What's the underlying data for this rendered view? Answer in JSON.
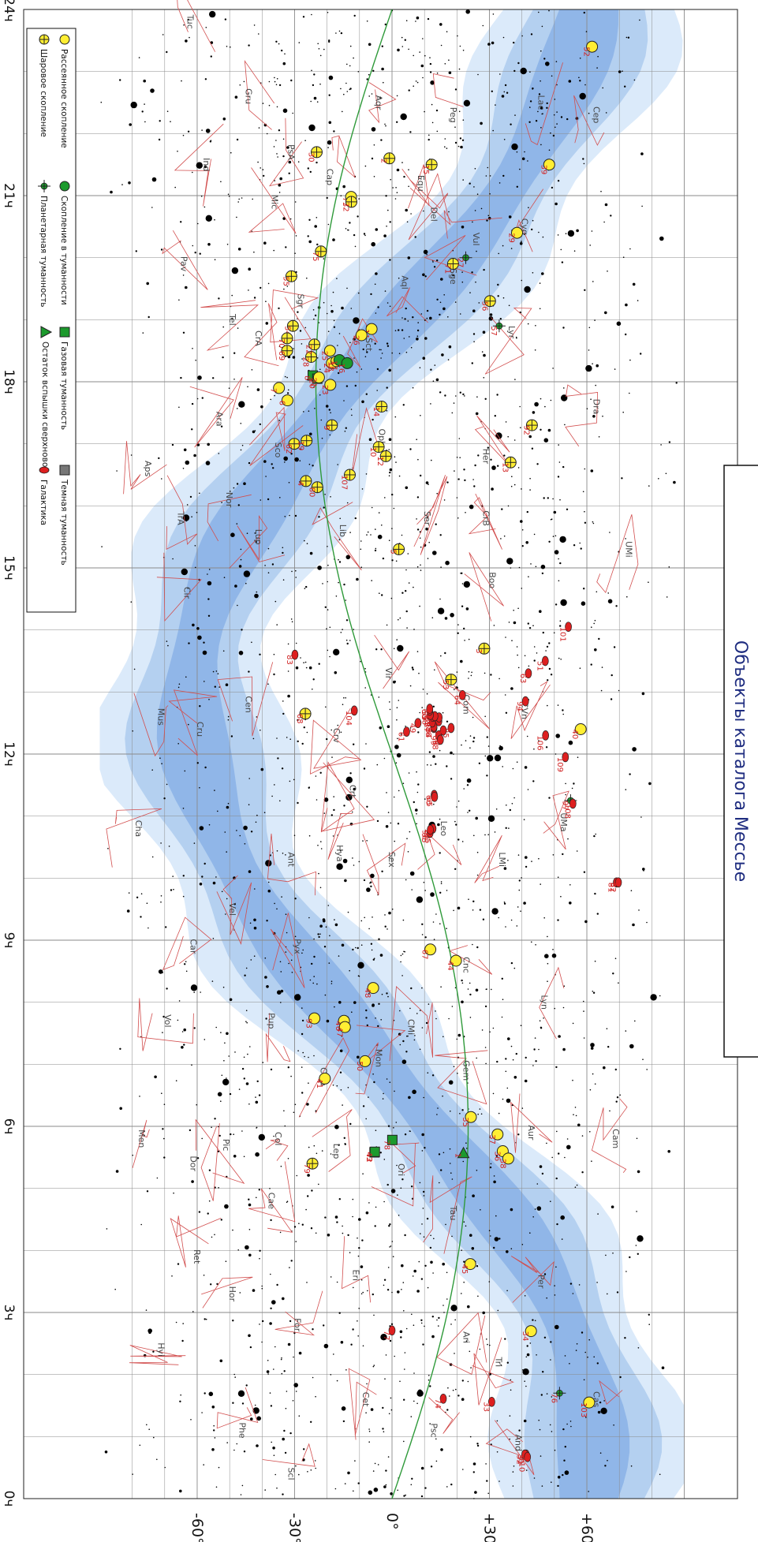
{
  "title": "Объекты каталога Мессье",
  "ra_labels": [
    "24ч",
    "21ч",
    "18ч",
    "15ч",
    "12ч",
    "9ч",
    "6ч",
    "3ч",
    "0ч"
  ],
  "dec_labels": [
    "-60°",
    "-30°",
    "0°",
    "+30°",
    "+60°"
  ],
  "legend": [
    {
      "key": "open",
      "label": "Рассеянное скопление"
    },
    {
      "key": "globular",
      "label": "Шаровое скопление"
    },
    {
      "key": "cluster_neb",
      "label": "Скопление в туманности"
    },
    {
      "key": "planetary",
      "label": "Планетарная туманность"
    },
    {
      "key": "gas",
      "label": "Газовая туманность"
    },
    {
      "key": "snr",
      "label": "Остаток вспышки сверхновой"
    },
    {
      "key": "dark",
      "label": "Темная туманность"
    },
    {
      "key": "galaxy",
      "label": "Галактика"
    }
  ],
  "constellations": [
    {
      "name": "Cep",
      "ra": 22.3,
      "dec": 62
    },
    {
      "name": "Lac",
      "ra": 22.5,
      "dec": 45
    },
    {
      "name": "Peg",
      "ra": 22.3,
      "dec": 18
    },
    {
      "name": "Aqr",
      "ra": 22.5,
      "dec": -5
    },
    {
      "name": "Gru",
      "ra": 22.6,
      "dec": -45
    },
    {
      "name": "Tuc",
      "ra": 23.8,
      "dec": -63
    },
    {
      "name": "PsA",
      "ra": 21.7,
      "dec": -32
    },
    {
      "name": "Cap",
      "ra": 21.3,
      "dec": -20
    },
    {
      "name": "Equ",
      "ra": 21.2,
      "dec": 8
    },
    {
      "name": "Del",
      "ra": 20.7,
      "dec": 12
    },
    {
      "name": "Vul",
      "ra": 20.3,
      "dec": 25
    },
    {
      "name": "Cyg",
      "ra": 20.5,
      "dec": 40
    },
    {
      "name": "Ind",
      "ra": 21.5,
      "dec": -58
    },
    {
      "name": "Mic",
      "ra": 20.9,
      "dec": -37
    },
    {
      "name": "Pav",
      "ra": 19.9,
      "dec": -65
    },
    {
      "name": "Tel",
      "ra": 19.0,
      "dec": -50
    },
    {
      "name": "Sgr",
      "ra": 19.3,
      "dec": -29
    },
    {
      "name": "CrA",
      "ra": 18.7,
      "dec": -42
    },
    {
      "name": "Aql",
      "ra": 19.6,
      "dec": 3
    },
    {
      "name": "Sge",
      "ra": 19.7,
      "dec": 18
    },
    {
      "name": "Lyr",
      "ra": 18.8,
      "dec": 36
    },
    {
      "name": "Sct",
      "ra": 18.6,
      "dec": -8
    },
    {
      "name": "Dra",
      "ra": 17.6,
      "dec": 62
    },
    {
      "name": "Her",
      "ra": 16.8,
      "dec": 28
    },
    {
      "name": "Oph",
      "ra": 17.1,
      "dec": -4
    },
    {
      "name": "Ara",
      "ra": 17.4,
      "dec": -54
    },
    {
      "name": "Sco",
      "ra": 16.9,
      "dec": -36
    },
    {
      "name": "Aps",
      "ra": 16.6,
      "dec": -76
    },
    {
      "name": "Nor",
      "ra": 16.1,
      "dec": -51
    },
    {
      "name": "TrA",
      "ra": 15.8,
      "dec": -66
    },
    {
      "name": "Lup",
      "ra": 15.5,
      "dec": -42
    },
    {
      "name": "Lib",
      "ra": 15.6,
      "dec": -16
    },
    {
      "name": "Ser",
      "ra": 15.8,
      "dec": 10
    },
    {
      "name": "CrB",
      "ra": 15.8,
      "dec": 28
    },
    {
      "name": "Boo",
      "ra": 14.8,
      "dec": 30
    },
    {
      "name": "UMi",
      "ra": 15.3,
      "dec": 72
    },
    {
      "name": "Cir",
      "ra": 14.6,
      "dec": -64
    },
    {
      "name": "Mus",
      "ra": 12.6,
      "dec": -72
    },
    {
      "name": "Cen",
      "ra": 12.8,
      "dec": -45
    },
    {
      "name": "Cru",
      "ra": 12.4,
      "dec": -60
    },
    {
      "name": "Vir",
      "ra": 13.3,
      "dec": -2
    },
    {
      "name": "Com",
      "ra": 12.8,
      "dec": 22
    },
    {
      "name": "CVn",
      "ra": 12.7,
      "dec": 40
    },
    {
      "name": "Crv",
      "ra": 12.3,
      "dec": -18
    },
    {
      "name": "Crt",
      "ra": 11.4,
      "dec": -13
    },
    {
      "name": "Hya",
      "ra": 10.4,
      "dec": -17
    },
    {
      "name": "Sex",
      "ra": 10.3,
      "dec": -1
    },
    {
      "name": "Leo",
      "ra": 10.8,
      "dec": 15
    },
    {
      "name": "LMi",
      "ra": 10.3,
      "dec": 33
    },
    {
      "name": "UMa",
      "ra": 10.9,
      "dec": 52
    },
    {
      "name": "Cha",
      "ra": 10.8,
      "dec": -79
    },
    {
      "name": "Ant",
      "ra": 10.3,
      "dec": -32
    },
    {
      "name": "Vel",
      "ra": 9.5,
      "dec": -50
    },
    {
      "name": "Car",
      "ra": 8.9,
      "dec": -62
    },
    {
      "name": "Pyx",
      "ra": 8.9,
      "dec": -30
    },
    {
      "name": "Cnc",
      "ra": 8.6,
      "dec": 22
    },
    {
      "name": "Lyn",
      "ra": 8.0,
      "dec": 46
    },
    {
      "name": "CMi",
      "ra": 7.6,
      "dec": 5
    },
    {
      "name": "Mon",
      "ra": 7.1,
      "dec": -5
    },
    {
      "name": "Pup",
      "ra": 7.7,
      "dec": -38
    },
    {
      "name": "Vol",
      "ra": 7.7,
      "dec": -70
    },
    {
      "name": "CMa",
      "ra": 6.8,
      "dec": -22
    },
    {
      "name": "Gem",
      "ra": 6.9,
      "dec": 22
    },
    {
      "name": "Aur",
      "ra": 5.9,
      "dec": 42
    },
    {
      "name": "Cam",
      "ra": 5.8,
      "dec": 68
    },
    {
      "name": "Lep",
      "ra": 5.6,
      "dec": -18
    },
    {
      "name": "Ori",
      "ra": 5.3,
      "dec": 2
    },
    {
      "name": "Pic",
      "ra": 5.7,
      "dec": -52
    },
    {
      "name": "Dor",
      "ra": 5.4,
      "dec": -62
    },
    {
      "name": "Men",
      "ra": 5.8,
      "dec": -78
    },
    {
      "name": "Col",
      "ra": 5.8,
      "dec": -36
    },
    {
      "name": "Cae",
      "ra": 4.8,
      "dec": -38
    },
    {
      "name": "Tau",
      "ra": 4.6,
      "dec": 18
    },
    {
      "name": "Eri",
      "ra": 3.6,
      "dec": -12
    },
    {
      "name": "Per",
      "ra": 3.5,
      "dec": 45
    },
    {
      "name": "Ret",
      "ra": 3.9,
      "dec": -61
    },
    {
      "name": "Hor",
      "ra": 3.3,
      "dec": -50
    },
    {
      "name": "For",
      "ra": 2.8,
      "dec": -30
    },
    {
      "name": "Hyi",
      "ra": 2.4,
      "dec": -72
    },
    {
      "name": "Ari",
      "ra": 2.6,
      "dec": 22
    },
    {
      "name": "Tri",
      "ra": 2.2,
      "dec": 32
    },
    {
      "name": "Cet",
      "ra": 1.6,
      "dec": -9
    },
    {
      "name": "Psc",
      "ra": 1.1,
      "dec": 12
    },
    {
      "name": "And",
      "ra": 0.9,
      "dec": 38
    },
    {
      "name": "Cas",
      "ra": 1.6,
      "dec": 62
    },
    {
      "name": "Phe",
      "ra": 1.1,
      "dec": -47
    },
    {
      "name": "Scl",
      "ra": 0.4,
      "dec": -32
    }
  ],
  "messier": [
    {
      "n": "52",
      "type": "open",
      "ra": 23.4,
      "dec": 61.6
    },
    {
      "n": "39",
      "type": "open",
      "ra": 21.5,
      "dec": 48.4
    },
    {
      "n": "29",
      "type": "open",
      "ra": 20.4,
      "dec": 38.5
    },
    {
      "n": "15",
      "type": "globular",
      "ra": 21.5,
      "dec": 12.2
    },
    {
      "n": "2",
      "type": "globular",
      "ra": 21.6,
      "dec": -0.8
    },
    {
      "n": "30",
      "type": "globular",
      "ra": 21.7,
      "dec": -23.2
    },
    {
      "n": "73",
      "type": "open",
      "ra": 20.98,
      "dec": -12.6
    },
    {
      "n": "72",
      "type": "globular",
      "ra": 20.9,
      "dec": -12.5
    },
    {
      "n": "75",
      "type": "globular",
      "ra": 20.1,
      "dec": -21.9
    },
    {
      "n": "71",
      "type": "globular",
      "ra": 19.9,
      "dec": 18.8
    },
    {
      "n": "27",
      "type": "planetary",
      "ra": 20.0,
      "dec": 22.7
    },
    {
      "n": "56",
      "type": "globular",
      "ra": 19.3,
      "dec": 30.2
    },
    {
      "n": "57",
      "type": "planetary",
      "ra": 18.9,
      "dec": 33.0
    },
    {
      "n": "55",
      "type": "globular",
      "ra": 19.7,
      "dec": -31.0
    },
    {
      "n": "54",
      "type": "globular",
      "ra": 18.9,
      "dec": -30.5
    },
    {
      "n": "70",
      "type": "globular",
      "ra": 18.7,
      "dec": -32.3
    },
    {
      "n": "69",
      "type": "globular",
      "ra": 18.5,
      "dec": -32.3
    },
    {
      "n": "28",
      "type": "globular",
      "ra": 18.4,
      "dec": -24.9
    },
    {
      "n": "22",
      "type": "globular",
      "ra": 18.6,
      "dec": -23.9
    },
    {
      "n": "25",
      "type": "open",
      "ra": 18.5,
      "dec": -19.1
    },
    {
      "n": "11",
      "type": "open",
      "ra": 18.85,
      "dec": -6.3
    },
    {
      "n": "26",
      "type": "open",
      "ra": 18.75,
      "dec": -9.4
    },
    {
      "n": "24",
      "type": "open",
      "ra": 18.3,
      "dec": -18.5
    },
    {
      "n": "18",
      "type": "open",
      "ra": 18.33,
      "dec": -17.1
    },
    {
      "n": "17",
      "type": "cluster_neb",
      "ra": 18.35,
      "dec": -16.2
    },
    {
      "n": "16",
      "type": "cluster_neb",
      "ra": 18.3,
      "dec": -13.8
    },
    {
      "n": "8",
      "type": "gas",
      "ra": 18.1,
      "dec": -24.4
    },
    {
      "n": "20",
      "type": "gas",
      "ra": 18.05,
      "dec": -23.0
    },
    {
      "n": "21",
      "type": "open",
      "ra": 18.07,
      "dec": -22.5
    },
    {
      "n": "23",
      "type": "open",
      "ra": 17.95,
      "dec": -19.0
    },
    {
      "n": "9",
      "type": "globular",
      "ra": 17.3,
      "dec": -18.5
    },
    {
      "n": "7",
      "type": "open",
      "ra": 17.9,
      "dec": -34.8
    },
    {
      "n": "6",
      "type": "open",
      "ra": 17.7,
      "dec": -32.2
    },
    {
      "n": "62",
      "type": "globular",
      "ra": 17.0,
      "dec": -30.1
    },
    {
      "n": "19",
      "type": "globular",
      "ra": 17.05,
      "dec": -26.3
    },
    {
      "n": "4",
      "type": "globular",
      "ra": 16.4,
      "dec": -26.5
    },
    {
      "n": "80",
      "type": "globular",
      "ra": 16.3,
      "dec": -23.0
    },
    {
      "n": "14",
      "type": "globular",
      "ra": 17.6,
      "dec": -3.2
    },
    {
      "n": "10",
      "type": "globular",
      "ra": 16.95,
      "dec": -4.1
    },
    {
      "n": "12",
      "type": "globular",
      "ra": 16.8,
      "dec": -1.9
    },
    {
      "n": "107",
      "type": "globular",
      "ra": 16.5,
      "dec": -13.0
    },
    {
      "n": "5",
      "type": "globular",
      "ra": 15.3,
      "dec": 2.1
    },
    {
      "n": "13",
      "type": "globular",
      "ra": 16.7,
      "dec": 36.5
    },
    {
      "n": "92",
      "type": "globular",
      "ra": 17.3,
      "dec": 43.1
    },
    {
      "n": "3",
      "type": "globular",
      "ra": 13.7,
      "dec": 28.4
    },
    {
      "n": "53",
      "type": "globular",
      "ra": 13.2,
      "dec": 18.2
    },
    {
      "n": "68",
      "type": "globular",
      "ra": 12.65,
      "dec": -26.7
    },
    {
      "n": "83",
      "type": "galaxy",
      "ra": 13.6,
      "dec": -29.9
    },
    {
      "n": "104",
      "type": "galaxy",
      "ra": 12.7,
      "dec": -11.6
    },
    {
      "n": "101",
      "type": "galaxy",
      "ra": 14.05,
      "dec": 54.3
    },
    {
      "n": "51",
      "type": "galaxy",
      "ra": 13.5,
      "dec": 47.2
    },
    {
      "n": "63",
      "type": "galaxy",
      "ra": 13.3,
      "dec": 42.0
    },
    {
      "n": "94",
      "type": "galaxy",
      "ra": 12.85,
      "dec": 41.1
    },
    {
      "n": "106",
      "type": "galaxy",
      "ra": 12.3,
      "dec": 47.3
    },
    {
      "n": "109",
      "type": "galaxy",
      "ra": 11.95,
      "dec": 53.4
    },
    {
      "n": "40",
      "type": "open",
      "ra": 12.4,
      "dec": 58.1
    },
    {
      "n": "97",
      "type": "planetary",
      "ra": 11.25,
      "dec": 55.0
    },
    {
      "n": "108",
      "type": "galaxy",
      "ra": 11.2,
      "dec": 55.7
    },
    {
      "n": "64",
      "type": "galaxy",
      "ra": 12.95,
      "dec": 21.7
    },
    {
      "n": "85",
      "type": "galaxy",
      "ra": 12.42,
      "dec": 18.2
    },
    {
      "n": "88",
      "type": "galaxy",
      "ra": 12.53,
      "dec": 14.4
    },
    {
      "n": "91",
      "type": "galaxy",
      "ra": 12.59,
      "dec": 14.5
    },
    {
      "n": "99",
      "type": "galaxy",
      "ra": 12.3,
      "dec": 14.4
    },
    {
      "n": "100",
      "type": "galaxy",
      "ra": 12.38,
      "dec": 15.8
    },
    {
      "n": "98",
      "type": "galaxy",
      "ra": 12.23,
      "dec": 14.9
    },
    {
      "n": "84",
      "type": "galaxy",
      "ra": 12.42,
      "dec": 12.9
    },
    {
      "n": "86",
      "type": "galaxy",
      "ra": 12.44,
      "dec": 12.9
    },
    {
      "n": "87",
      "type": "galaxy",
      "ra": 12.51,
      "dec": 12.4
    },
    {
      "n": "89",
      "type": "galaxy",
      "ra": 12.6,
      "dec": 12.6
    },
    {
      "n": "90",
      "type": "galaxy",
      "ra": 12.61,
      "dec": 13.2
    },
    {
      "n": "58",
      "type": "galaxy",
      "ra": 12.63,
      "dec": 11.8
    },
    {
      "n": "59",
      "type": "galaxy",
      "ra": 12.7,
      "dec": 11.6
    },
    {
      "n": "60",
      "type": "galaxy",
      "ra": 12.73,
      "dec": 11.6
    },
    {
      "n": "49",
      "type": "galaxy",
      "ra": 12.5,
      "dec": 8.0
    },
    {
      "n": "61",
      "type": "galaxy",
      "ra": 12.36,
      "dec": 4.5
    },
    {
      "n": "66",
      "type": "galaxy",
      "ra": 11.34,
      "dec": 13.0
    },
    {
      "n": "65",
      "type": "galaxy",
      "ra": 11.31,
      "dec": 13.1
    },
    {
      "n": "105",
      "type": "galaxy",
      "ra": 10.8,
      "dec": 12.6
    },
    {
      "n": "95",
      "type": "galaxy",
      "ra": 10.73,
      "dec": 11.7
    },
    {
      "n": "96",
      "type": "galaxy",
      "ra": 10.78,
      "dec": 11.8
    },
    {
      "n": "81",
      "type": "galaxy",
      "ra": 9.93,
      "dec": 69.1
    },
    {
      "n": "82",
      "type": "galaxy",
      "ra": 9.93,
      "dec": 69.7
    },
    {
      "n": "67",
      "type": "open",
      "ra": 8.85,
      "dec": 11.8
    },
    {
      "n": "44",
      "type": "open",
      "ra": 8.67,
      "dec": 19.7
    },
    {
      "n": "48",
      "type": "open",
      "ra": 8.23,
      "dec": -5.8
    },
    {
      "n": "46",
      "type": "open",
      "ra": 7.7,
      "dec": -14.8
    },
    {
      "n": "47",
      "type": "open",
      "ra": 7.6,
      "dec": -14.5
    },
    {
      "n": "93",
      "type": "open",
      "ra": 7.74,
      "dec": -23.9
    },
    {
      "n": "50",
      "type": "open",
      "ra": 7.05,
      "dec": -8.3
    },
    {
      "n": "41",
      "type": "open",
      "ra": 6.77,
      "dec": -20.7
    },
    {
      "n": "35",
      "type": "open",
      "ra": 6.15,
      "dec": 24.3
    },
    {
      "n": "37",
      "type": "open",
      "ra": 5.87,
      "dec": 32.5
    },
    {
      "n": "36",
      "type": "open",
      "ra": 5.6,
      "dec": 34.1
    },
    {
      "n": "38",
      "type": "open",
      "ra": 5.48,
      "dec": 35.8
    },
    {
      "n": "1",
      "type": "snr",
      "ra": 5.57,
      "dec": 22.0
    },
    {
      "n": "78",
      "type": "gas",
      "ra": 5.78,
      "dec": 0.1
    },
    {
      "n": "42",
      "type": "gas",
      "ra": 5.58,
      "dec": -5.4
    },
    {
      "n": "43",
      "type": "gas",
      "ra": 5.59,
      "dec": -5.3
    },
    {
      "n": "79",
      "type": "globular",
      "ra": 5.4,
      "dec": -24.5
    },
    {
      "n": "45",
      "type": "open",
      "ra": 3.78,
      "dec": 24.1
    },
    {
      "n": "34",
      "type": "open",
      "ra": 2.7,
      "dec": 42.8
    },
    {
      "n": "77",
      "type": "galaxy",
      "ra": 2.71,
      "dec": -0.0
    },
    {
      "n": "33",
      "type": "galaxy",
      "ra": 1.56,
      "dec": 30.7
    },
    {
      "n": "74",
      "type": "galaxy",
      "ra": 1.61,
      "dec": 15.8
    },
    {
      "n": "76",
      "type": "planetary",
      "ra": 1.7,
      "dec": 51.6
    },
    {
      "n": "103",
      "type": "open",
      "ra": 1.55,
      "dec": 60.7
    },
    {
      "n": "31",
      "type": "galaxy",
      "ra": 0.71,
      "dec": 41.3
    },
    {
      "n": "32",
      "type": "galaxy",
      "ra": 0.71,
      "dec": 40.9
    },
    {
      "n": "110",
      "type": "galaxy",
      "ra": 0.67,
      "dec": 41.7
    }
  ],
  "colors": {
    "band_outer": "#dbeafa",
    "band_mid": "#b4d0f0",
    "band_inner": "#90b6e8",
    "grid": "#8a8a8a",
    "constellation": "#d24e4e",
    "ecliptic": "#2f9a3a",
    "open_fill": "#ffee33",
    "galaxy_fill": "#dd1f1f",
    "gas_fill": "#1c9a2d",
    "title": "#1f2d80"
  }
}
